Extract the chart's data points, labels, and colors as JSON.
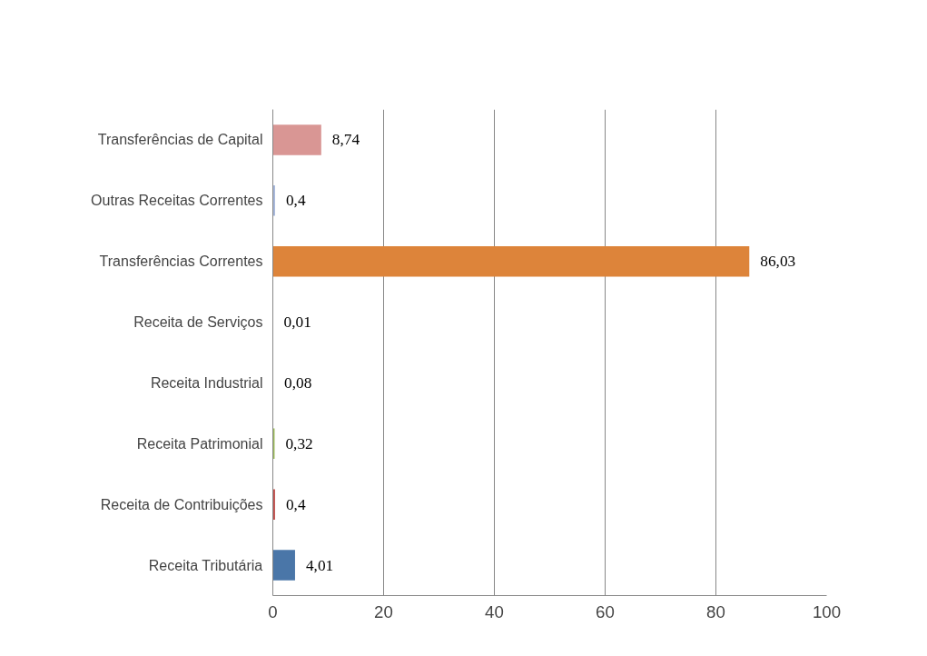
{
  "chart_data": {
    "type": "bar",
    "orientation": "horizontal",
    "categories": [
      "Transferências de Capital",
      "Outras Receitas Correntes",
      "Transferências Correntes",
      "Receita de Serviços",
      "Receita Industrial",
      "Receita Patrimonial",
      "Receita de Contribuições",
      "Receita Tributária"
    ],
    "values": [
      8.74,
      0.4,
      86.03,
      0.01,
      0.08,
      0.32,
      0.4,
      4.01
    ],
    "value_labels": [
      "8,74",
      "0,4",
      "86,03",
      "0,01",
      "0,08",
      "0,32",
      "0,4",
      "4,01"
    ],
    "colors": [
      "#d99694",
      "#a5b6da",
      "#dd843a",
      "#4bacc6",
      "#8064a2",
      "#9bbb59",
      "#c0504d",
      "#4a76a8"
    ],
    "xlim": [
      0,
      100
    ],
    "xticks": [
      0,
      20,
      40,
      60,
      80,
      100
    ],
    "grid": "x"
  }
}
